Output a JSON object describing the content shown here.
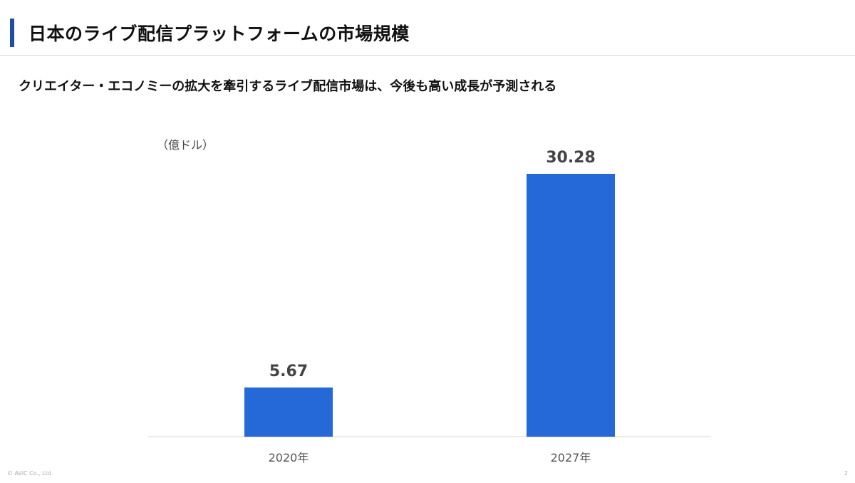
{
  "slide": {
    "title": "日本のライブ配信プラットフォームの市場規模",
    "subtitle": "クリエイター・エコノミーの拡大を牽引するライブ配信市場は、今後も高い成長が予測される",
    "footer_copyright": "© AViC Co., Ltd.",
    "page_number": "2"
  },
  "colors": {
    "accent": "#1f4fa3",
    "bar": "#2569d8",
    "value_label": "#444444",
    "tick_label": "#555555",
    "baseline": "#d9d9d9"
  },
  "chart_data": {
    "type": "bar",
    "unit_label": "（億ドル）",
    "categories": [
      "2020年",
      "2027年"
    ],
    "values": [
      5.67,
      30.28
    ],
    "value_labels": [
      "5.67",
      "30.28"
    ],
    "ylim": [
      0,
      30.28
    ],
    "grid": false,
    "legend": "none"
  }
}
